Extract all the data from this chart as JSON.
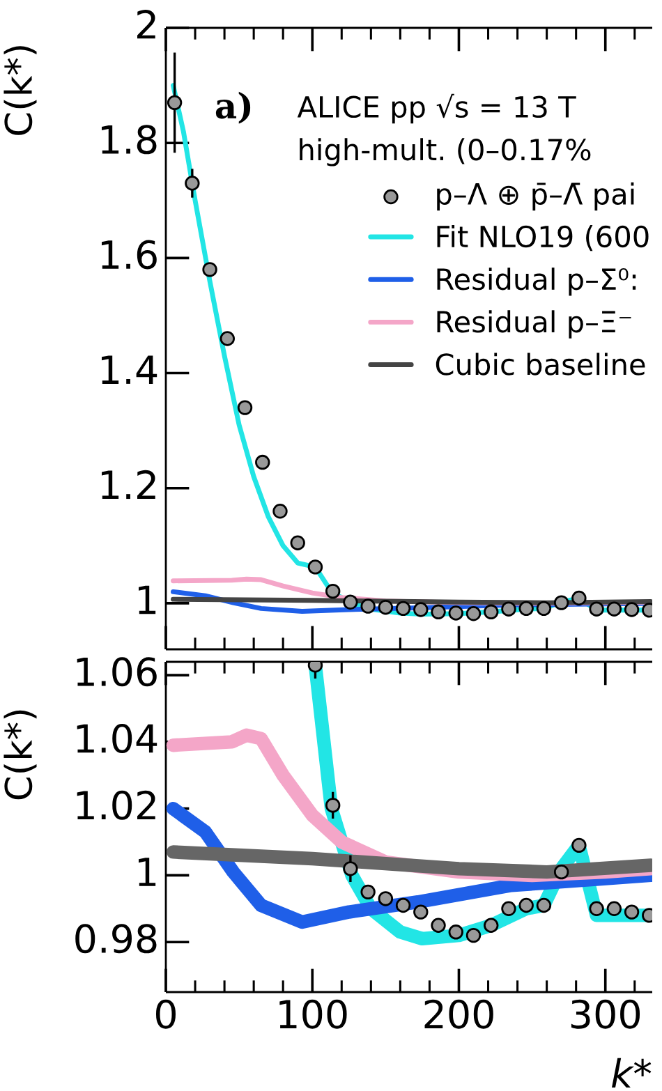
{
  "chart_data": [
    {
      "type": "line",
      "ylabel": "C(k*)",
      "xlim": [
        0,
        332
      ],
      "ylim": [
        0.92,
        2
      ],
      "xticks": [
        0,
        100,
        200,
        300
      ],
      "yticks": [
        1,
        1.2,
        1.4,
        1.6,
        1.8,
        2
      ],
      "tick_labels": "y",
      "legend": "top right",
      "grid": false,
      "annotations": [
        "a)",
        "ALICE pp √s = 13 T",
        "high-mult. (0–0.17%"
      ],
      "series": [
        {
          "name": "p–Λ ⊕ p̄–Λ̄ pai",
          "type": "scatter",
          "marker": "circle",
          "color": "#999999",
          "x": [
            6,
            18,
            30,
            42,
            54,
            66,
            78,
            90,
            102,
            114,
            126,
            138,
            150,
            162,
            174,
            186,
            198,
            210,
            222,
            234,
            246,
            258,
            270,
            282,
            294,
            306,
            318,
            330
          ],
          "values": [
            1.87,
            1.73,
            1.58,
            1.46,
            1.34,
            1.245,
            1.16,
            1.105,
            1.063,
            1.021,
            1.002,
            0.995,
            0.993,
            0.991,
            0.989,
            0.985,
            0.983,
            0.982,
            0.985,
            0.99,
            0.991,
            0.991,
            1.001,
            1.009,
            0.99,
            0.99,
            0.989,
            0.988
          ],
          "errors": [
            0.087,
            0.025,
            null,
            null,
            null,
            null,
            null,
            null,
            null,
            null,
            null,
            null,
            null,
            null,
            null,
            null,
            null,
            null,
            null,
            null,
            null,
            null,
            null,
            null,
            null,
            null,
            null,
            null
          ]
        },
        {
          "name": "Fit NLO19 (600",
          "color": "#22e5e5",
          "x": [
            5,
            12,
            20,
            30,
            40,
            50,
            60,
            70,
            80,
            90,
            102,
            113,
            127,
            140,
            160,
            175,
            200,
            222,
            246,
            258,
            270,
            282,
            294,
            306,
            330
          ],
          "values": [
            1.9,
            1.82,
            1.7,
            1.56,
            1.43,
            1.31,
            1.22,
            1.15,
            1.1,
            1.07,
            1.063,
            1.02,
            1.0,
            0.99,
            0.983,
            0.981,
            0.982,
            0.985,
            0.99,
            0.991,
            1.002,
            1.009,
            0.988,
            0.988,
            0.988
          ]
        },
        {
          "name": "Residual p–Σ⁰:",
          "color": "#1f5fe8",
          "x": [
            5,
            27,
            46,
            65,
            93,
            125,
            172,
            236,
            331
          ],
          "values": [
            1.02,
            1.013,
            1.001,
            0.991,
            0.986,
            0.989,
            0.992,
            0.997,
            1.0
          ]
        },
        {
          "name": "Residual p–Ξ⁻",
          "color": "#f4a6c8",
          "x": [
            5,
            45,
            55,
            65,
            80,
            100,
            120,
            150,
            200,
            250,
            300,
            331
          ],
          "values": [
            1.039,
            1.04,
            1.042,
            1.041,
            1.03,
            1.018,
            1.01,
            1.004,
            1.001,
            1.0,
            1.001,
            1.002
          ]
        },
        {
          "name": "Cubic baseline",
          "color": "#444444",
          "x": [
            5,
            100,
            200,
            260,
            331
          ],
          "values": [
            1.007,
            1.005,
            1.002,
            1.001,
            1.003
          ]
        }
      ]
    },
    {
      "type": "line",
      "ylabel": "C(k*)",
      "xlabel": "k*",
      "xlim": [
        0,
        332
      ],
      "ylim": [
        0.965,
        1.064
      ],
      "xticks": [
        0,
        100,
        200,
        300
      ],
      "yticks": [
        0.98,
        1,
        1.02,
        1.04,
        1.06
      ],
      "grid": false,
      "series": [
        {
          "type": "scatter",
          "marker": "circle",
          "color": "#999999",
          "x": [
            102,
            114,
            126,
            138,
            150,
            162,
            174,
            186,
            198,
            210,
            222,
            234,
            246,
            258,
            270,
            282,
            294,
            306,
            318,
            330
          ],
          "values": [
            1.063,
            1.021,
            1.002,
            0.995,
            0.993,
            0.991,
            0.989,
            0.985,
            0.983,
            0.982,
            0.985,
            0.99,
            0.991,
            0.991,
            1.001,
            1.009,
            0.99,
            0.99,
            0.989,
            0.988
          ],
          "errors": [
            0.004,
            0.004,
            0.004,
            null,
            null,
            null,
            null,
            null,
            null,
            null,
            null,
            null,
            null,
            null,
            null,
            null,
            null,
            null,
            null,
            null
          ]
        },
        {
          "color": "#22e5e5",
          "x": [
            102,
            113,
            127,
            140,
            160,
            175,
            200,
            222,
            246,
            258,
            270,
            282,
            294,
            306,
            330
          ],
          "values": [
            1.063,
            1.02,
            1.0,
            0.99,
            0.983,
            0.981,
            0.982,
            0.985,
            0.99,
            0.991,
            1.002,
            1.009,
            0.988,
            0.988,
            0.988
          ]
        },
        {
          "color": "#1f5fe8",
          "x": [
            5,
            27,
            46,
            65,
            93,
            125,
            172,
            236,
            331
          ],
          "values": [
            1.02,
            1.013,
            1.001,
            0.991,
            0.986,
            0.989,
            0.992,
            0.997,
            1.0
          ]
        },
        {
          "color": "#f4a6c8",
          "x": [
            5,
            45,
            55,
            65,
            80,
            100,
            120,
            150,
            200,
            250,
            300,
            331
          ],
          "values": [
            1.039,
            1.04,
            1.042,
            1.041,
            1.03,
            1.018,
            1.01,
            1.004,
            1.001,
            1.0,
            1.001,
            1.002
          ]
        },
        {
          "color": "#666666",
          "x": [
            5,
            100,
            200,
            260,
            331
          ],
          "values": [
            1.007,
            1.005,
            1.002,
            1.001,
            1.003
          ]
        }
      ]
    }
  ]
}
